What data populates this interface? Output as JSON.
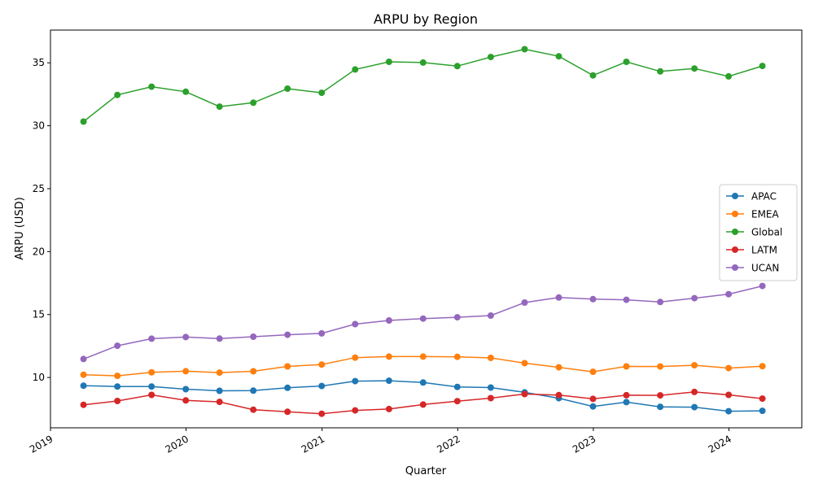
{
  "chart_data": {
    "type": "line",
    "title": "ARPU by Region",
    "xlabel": "Quarter",
    "ylabel": "ARPU (USD)",
    "x_ticks": [
      "2019",
      "2020",
      "2021",
      "2022",
      "2023",
      "2024"
    ],
    "y_ticks": [
      10,
      15,
      20,
      25,
      30,
      35
    ],
    "xlim": [
      "2019-01-01",
      "2024-07-15"
    ],
    "ylim": [
      6.0,
      37.6
    ],
    "legend_position": "center-right",
    "grid": false,
    "x": [
      "2019-03-31",
      "2019-06-30",
      "2019-09-30",
      "2019-12-31",
      "2020-03-31",
      "2020-06-30",
      "2020-09-30",
      "2020-12-31",
      "2021-03-31",
      "2021-06-30",
      "2021-09-30",
      "2021-12-31",
      "2022-03-31",
      "2022-06-30",
      "2022-09-30",
      "2022-12-31",
      "2023-03-31",
      "2023-06-30",
      "2023-09-30",
      "2023-12-31",
      "2024-03-31"
    ],
    "series": [
      {
        "name": "APAC",
        "color": "#1f77b4",
        "values": [
          9.35,
          9.28,
          9.28,
          9.07,
          8.94,
          8.95,
          9.18,
          9.32,
          9.71,
          9.74,
          9.6,
          9.25,
          9.2,
          8.82,
          8.35,
          7.7,
          8.04,
          7.67,
          7.64,
          7.32,
          7.35
        ]
      },
      {
        "name": "EMEA",
        "color": "#ff7f0e",
        "values": [
          10.22,
          10.13,
          10.41,
          10.5,
          10.39,
          10.49,
          10.88,
          11.03,
          11.58,
          11.66,
          11.66,
          11.64,
          11.56,
          11.14,
          10.81,
          10.45,
          10.88,
          10.87,
          10.97,
          10.74,
          10.9
        ]
      },
      {
        "name": "Global",
        "color": "#2ca02c",
        "values": [
          30.33,
          32.45,
          33.1,
          32.7,
          31.52,
          31.83,
          32.95,
          32.62,
          34.47,
          35.08,
          35.02,
          34.74,
          35.46,
          36.08,
          35.52,
          34.0,
          35.08,
          34.32,
          34.55,
          33.92,
          34.75
        ]
      },
      {
        "name": "LATM",
        "color": "#d62728",
        "values": [
          7.83,
          8.13,
          8.62,
          8.18,
          8.06,
          7.44,
          7.27,
          7.12,
          7.38,
          7.49,
          7.85,
          8.12,
          8.36,
          8.68,
          8.6,
          8.3,
          8.59,
          8.58,
          8.85,
          8.62,
          8.32
        ]
      },
      {
        "name": "UCAN",
        "color": "#9467bd",
        "values": [
          11.47,
          12.52,
          13.08,
          13.21,
          13.09,
          13.24,
          13.39,
          13.5,
          14.24,
          14.53,
          14.68,
          14.78,
          14.92,
          15.95,
          16.35,
          16.22,
          16.17,
          16.0,
          16.3,
          16.62,
          17.27
        ]
      }
    ]
  }
}
